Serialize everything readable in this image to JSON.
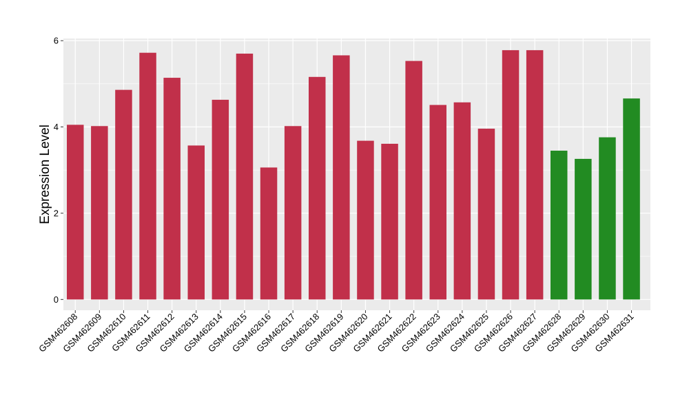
{
  "chart_data": {
    "type": "bar",
    "xlabel": "",
    "ylabel": "Expression Level",
    "ylim": [
      -0.25,
      6.05
    ],
    "yticks": [
      0,
      2,
      4,
      6
    ],
    "grid": true,
    "categories": [
      "GSM462608",
      "GSM462609",
      "GSM462610",
      "GSM462611",
      "GSM462612",
      "GSM462613",
      "GSM462614",
      "GSM462615",
      "GSM462616",
      "GSM462617",
      "GSM462618",
      "GSM462619",
      "GSM462620",
      "GSM462621",
      "GSM462622",
      "GSM462623",
      "GSM462624",
      "GSM462625",
      "GSM462626",
      "GSM462627",
      "GSM462628",
      "GSM462629",
      "GSM462630",
      "GSM462631"
    ],
    "values": [
      4.05,
      4.02,
      4.86,
      5.72,
      5.14,
      3.57,
      4.63,
      5.7,
      3.06,
      4.02,
      5.16,
      5.66,
      3.68,
      3.61,
      5.53,
      4.51,
      4.57,
      3.96,
      5.78,
      5.78,
      3.45,
      3.26,
      3.76,
      4.66
    ],
    "bar_colors": [
      "#C1304A",
      "#C1304A",
      "#C1304A",
      "#C1304A",
      "#C1304A",
      "#C1304A",
      "#C1304A",
      "#C1304A",
      "#C1304A",
      "#C1304A",
      "#C1304A",
      "#C1304A",
      "#C1304A",
      "#C1304A",
      "#C1304A",
      "#C1304A",
      "#C1304A",
      "#C1304A",
      "#C1304A",
      "#C1304A",
      "#228B22",
      "#228B22",
      "#228B22",
      "#228B22"
    ],
    "panel_background": "#EBEBEB",
    "grid_color": "#FFFFFF"
  }
}
